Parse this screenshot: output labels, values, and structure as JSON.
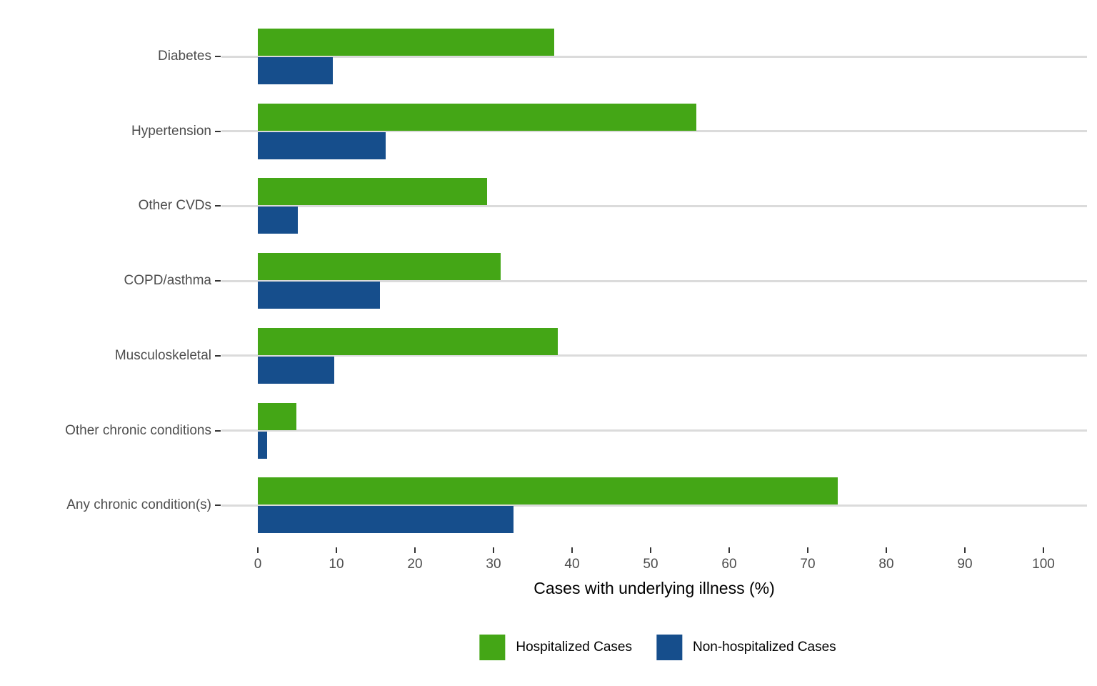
{
  "chart_data": {
    "type": "bar",
    "orientation": "horizontal",
    "title": "",
    "xlabel": "Cases with underlying illness (%)",
    "ylabel": "",
    "xlim": [
      0,
      100
    ],
    "xticks": [
      0,
      10,
      20,
      30,
      40,
      50,
      60,
      70,
      80,
      90,
      100
    ],
    "grid": "horizontal-only",
    "legend_position": "bottom",
    "categories": [
      "Diabetes",
      "Hypertension",
      "Other CVDs",
      "COPD/asthma",
      "Musculoskeletal",
      "Other chronic conditions",
      "Any chronic condition(s)"
    ],
    "series": [
      {
        "name": "Hospitalized Cases",
        "color": "#44a616",
        "values": [
          37.7,
          55.8,
          29.2,
          30.9,
          38.2,
          4.9,
          73.8
        ]
      },
      {
        "name": "Non-hospitalized Cases",
        "color": "#164e8c",
        "values": [
          9.5,
          16.3,
          5.1,
          15.5,
          9.7,
          1.2,
          32.5
        ]
      }
    ]
  },
  "style_colors": {
    "gridline": "#dbdbdb",
    "tick_mark": "#333333",
    "tick_text": "#4d4d4d",
    "axis_title_text": "#000000",
    "background": "#ffffff"
  }
}
